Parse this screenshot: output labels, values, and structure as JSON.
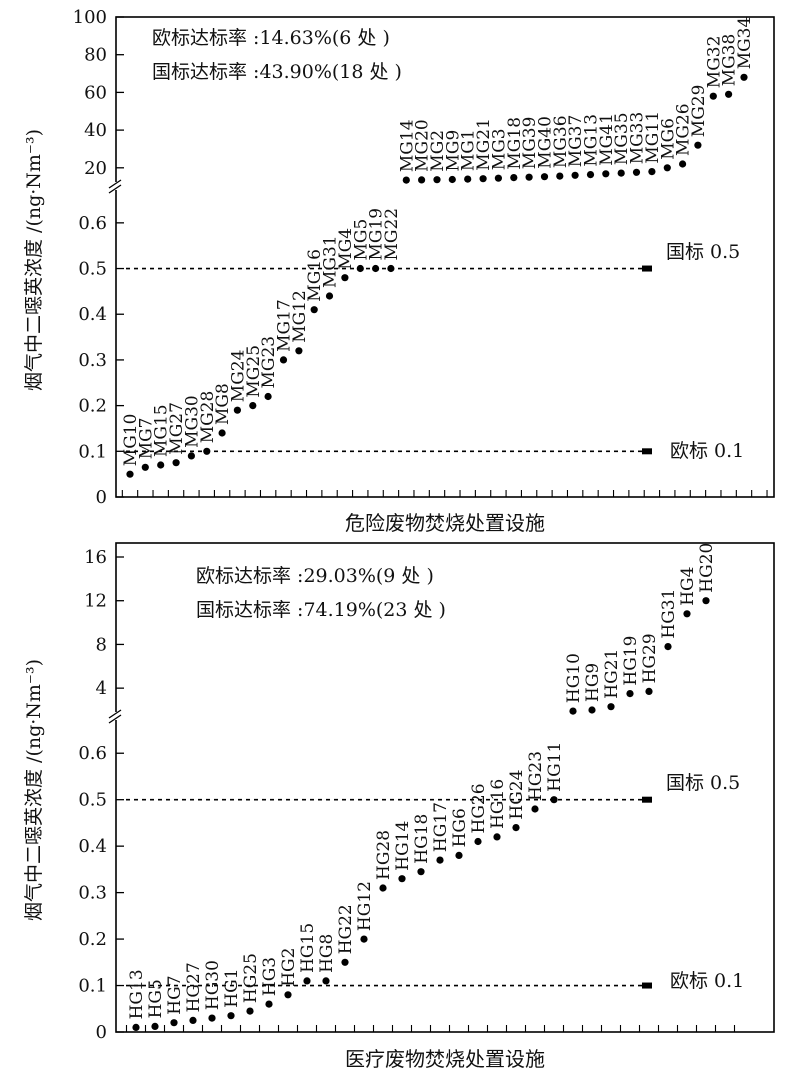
{
  "chart_data": [
    {
      "type": "scatter",
      "id": "hazardous",
      "xlabel": "危险废物焚烧处置设施",
      "ylabel": "烟气中二噁英浓度 /(ng·Nm⁻³)",
      "eu_rate": "欧标达标率 :14.63%(6 处 )",
      "gb_rate": "国标达标率 :43.90%(18 处 )",
      "eu_label": "欧标 0.1",
      "gb_label": "国标 0.5",
      "eu_limit": 0.1,
      "gb_limit": 0.5,
      "lower_range": [
        0,
        0.65
      ],
      "upper_range": [
        13,
        100
      ],
      "lower_ticks": [
        0,
        0.1,
        0.2,
        0.3,
        0.4,
        0.5,
        0.6
      ],
      "upper_ticks": [
        20,
        40,
        60,
        80,
        100
      ],
      "tick_labels_lower": [
        "0",
        "0.1",
        "0.2",
        "0.3",
        "0.4",
        "0.5",
        "0.6"
      ],
      "tick_labels_upper": [
        "20",
        "40",
        "60",
        "80",
        "100"
      ],
      "x_count": 42,
      "points": [
        {
          "label": "MG10",
          "value": 0.05
        },
        {
          "label": "MG7",
          "value": 0.065
        },
        {
          "label": "MG15",
          "value": 0.07
        },
        {
          "label": "MG27",
          "value": 0.075
        },
        {
          "label": "MG30",
          "value": 0.09
        },
        {
          "label": "MG28",
          "value": 0.1
        },
        {
          "label": "MG8",
          "value": 0.14
        },
        {
          "label": "MG24",
          "value": 0.19
        },
        {
          "label": "MG25",
          "value": 0.2
        },
        {
          "label": "MG23",
          "value": 0.22
        },
        {
          "label": "MG17",
          "value": 0.3
        },
        {
          "label": "MG12",
          "value": 0.32
        },
        {
          "label": "MG16",
          "value": 0.41
        },
        {
          "label": "MG31",
          "value": 0.44
        },
        {
          "label": "MG4",
          "value": 0.48
        },
        {
          "label": "MG5",
          "value": 0.5
        },
        {
          "label": "MG19",
          "value": 0.5
        },
        {
          "label": "MG22",
          "value": 0.5
        },
        {
          "label": "MG14",
          "value": 13.5
        },
        {
          "label": "MG20",
          "value": 13.6
        },
        {
          "label": "MG2",
          "value": 13.7
        },
        {
          "label": "MG9",
          "value": 13.8
        },
        {
          "label": "MG1",
          "value": 14
        },
        {
          "label": "MG21",
          "value": 14.2
        },
        {
          "label": "MG3",
          "value": 14.5
        },
        {
          "label": "MG18",
          "value": 14.8
        },
        {
          "label": "MG39",
          "value": 15
        },
        {
          "label": "MG40",
          "value": 15.3
        },
        {
          "label": "MG36",
          "value": 15.6
        },
        {
          "label": "MG37",
          "value": 16
        },
        {
          "label": "MG13",
          "value": 16.4
        },
        {
          "label": "MG41",
          "value": 16.8
        },
        {
          "label": "MG35",
          "value": 17.2
        },
        {
          "label": "MG33",
          "value": 17.6
        },
        {
          "label": "MG11",
          "value": 18
        },
        {
          "label": "MG6",
          "value": 20
        },
        {
          "label": "MG26",
          "value": 22
        },
        {
          "label": "MG29",
          "value": 32
        },
        {
          "label": "MG32",
          "value": 58
        },
        {
          "label": "MG38",
          "value": 59
        },
        {
          "label": "MG34",
          "value": 68
        }
      ]
    },
    {
      "type": "scatter",
      "id": "medical",
      "xlabel": "医疗废物焚烧处置设施",
      "ylabel": "烟气中二噁英浓度 /(ng·Nm⁻³)",
      "eu_rate": "欧标达标率 :29.03%(9 处 )",
      "gb_rate": "国标达标率 :74.19%(23 处 )",
      "eu_label": "欧标 0.1",
      "gb_label": "国标 0.5",
      "eu_limit": 0.1,
      "gb_limit": 0.5,
      "lower_range": [
        0,
        0.65
      ],
      "upper_range": [
        2,
        16
      ],
      "lower_ticks": [
        0,
        0.1,
        0.2,
        0.3,
        0.4,
        0.5,
        0.6
      ],
      "upper_ticks": [
        4,
        8,
        12,
        16
      ],
      "tick_labels_lower": [
        "0",
        "0.1",
        "0.2",
        "0.3",
        "0.4",
        "0.5",
        "0.6"
      ],
      "tick_labels_upper": [
        "4",
        "8",
        "12",
        "16"
      ],
      "x_count": 32,
      "points": [
        {
          "label": "HG13",
          "value": 0.01
        },
        {
          "label": "HG5",
          "value": 0.012
        },
        {
          "label": "HG7",
          "value": 0.02
        },
        {
          "label": "HG27",
          "value": 0.025
        },
        {
          "label": "HG30",
          "value": 0.03
        },
        {
          "label": "HG1",
          "value": 0.035
        },
        {
          "label": "HG25",
          "value": 0.045
        },
        {
          "label": "HG3",
          "value": 0.06
        },
        {
          "label": "HG2",
          "value": 0.08
        },
        {
          "label": "HG15",
          "value": 0.11
        },
        {
          "label": "HG8",
          "value": 0.11
        },
        {
          "label": "HG22",
          "value": 0.15
        },
        {
          "label": "HG12",
          "value": 0.2
        },
        {
          "label": "HG28",
          "value": 0.31
        },
        {
          "label": "HG14",
          "value": 0.33
        },
        {
          "label": "HG18",
          "value": 0.345
        },
        {
          "label": "HG17",
          "value": 0.37
        },
        {
          "label": "HG6",
          "value": 0.38
        },
        {
          "label": "HG26",
          "value": 0.41
        },
        {
          "label": "HG16",
          "value": 0.42
        },
        {
          "label": "HG24",
          "value": 0.44
        },
        {
          "label": "HG23",
          "value": 0.48
        },
        {
          "label": "HG11",
          "value": 0.5
        },
        {
          "label": "HG10",
          "value": 1.9
        },
        {
          "label": "HG9",
          "value": 2.0
        },
        {
          "label": "HG21",
          "value": 2.3
        },
        {
          "label": "HG19",
          "value": 3.5
        },
        {
          "label": "HG29",
          "value": 3.7
        },
        {
          "label": "HG31",
          "value": 7.8
        },
        {
          "label": "HG4",
          "value": 10.8
        },
        {
          "label": "HG20",
          "value": 12.0
        }
      ]
    }
  ]
}
